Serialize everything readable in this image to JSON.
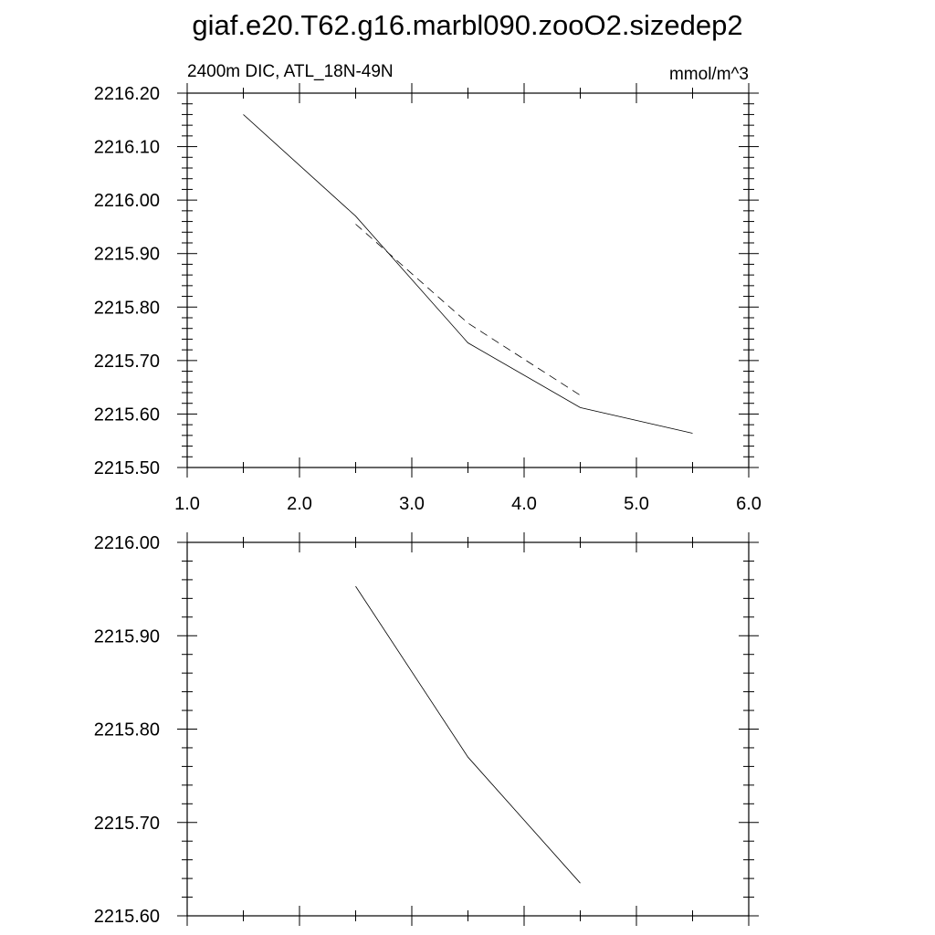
{
  "title": "giaf.e20.T62.g16.marbl090.zooO2.sizedep2",
  "chart_data": [
    {
      "type": "line",
      "left_label": "2400m DIC, ATL_18N-49N",
      "right_label": "mmol/m^3",
      "xlim": [
        1.0,
        6.0
      ],
      "ylim": [
        2215.5,
        2216.2
      ],
      "x_ticks": [
        "1.0",
        "2.0",
        "3.0",
        "4.0",
        "5.0",
        "6.0"
      ],
      "y_ticks": [
        "2215.50",
        "2215.60",
        "2215.70",
        "2215.80",
        "2215.90",
        "2216.00",
        "2216.10",
        "2216.20"
      ],
      "grid": false,
      "series": [
        {
          "style": "solid",
          "x": [
            1.5,
            2.5,
            3.5,
            4.5,
            5.5
          ],
          "y": [
            2216.16,
            2215.97,
            2215.733,
            2215.612,
            2215.564
          ]
        },
        {
          "style": "dashed",
          "x": [
            2.5,
            3.5,
            4.5
          ],
          "y": [
            2215.955,
            2215.77,
            2215.635
          ]
        }
      ]
    },
    {
      "type": "line",
      "xlim": [
        1.0,
        6.0
      ],
      "ylim": [
        2215.6,
        2216.0
      ],
      "y_ticks": [
        "2215.60",
        "2215.70",
        "2215.80",
        "2215.90",
        "2216.00"
      ],
      "grid": false,
      "series": [
        {
          "style": "solid",
          "x": [
            2.5,
            3.5,
            4.5
          ],
          "y": [
            2215.953,
            2215.77,
            2215.635
          ]
        }
      ]
    }
  ]
}
